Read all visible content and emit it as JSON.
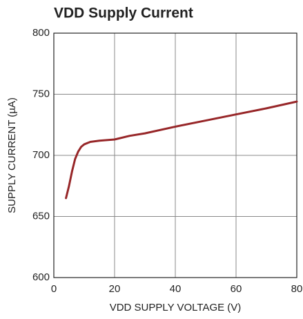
{
  "chart_data": {
    "type": "line",
    "title": "VDD Supply Current",
    "x_label": "VDD SUPPLY VOLTAGE (V)",
    "y_label": "SUPPLY CURRENT (µA)",
    "x": [
      4,
      5,
      6,
      7,
      8,
      9,
      10,
      12,
      15,
      20,
      25,
      30,
      40,
      50,
      60,
      70,
      80
    ],
    "series": [
      {
        "color": "#972628",
        "values": [
          665,
          675,
          687,
          697,
          703,
          707,
          709,
          711,
          712,
          713,
          716,
          718,
          723.5,
          728.5,
          733.5,
          738.5,
          744
        ]
      }
    ],
    "xlim": [
      0,
      80
    ],
    "xticks": [
      0,
      20,
      40,
      60,
      80
    ],
    "ylim": [
      600,
      800
    ],
    "yticks": [
      600,
      650,
      700,
      750,
      800
    ],
    "grid": true
  }
}
